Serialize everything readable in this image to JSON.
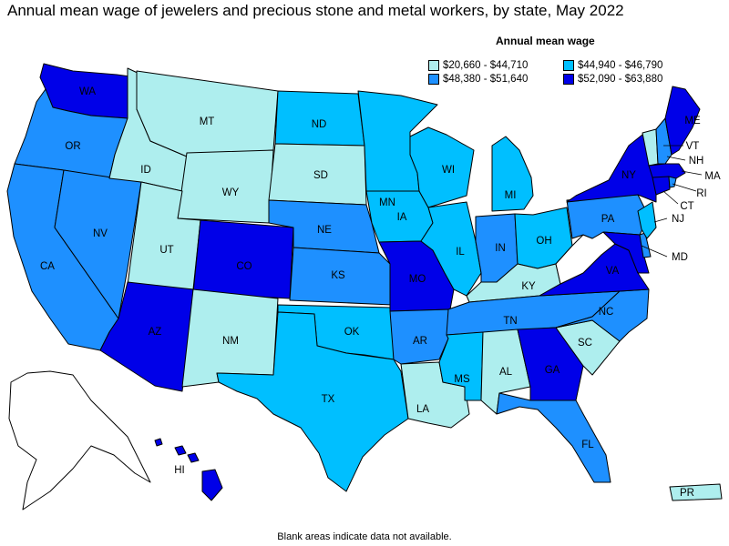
{
  "title": "Annual mean wage of jewelers and precious stone and metal workers, by state, May 2022",
  "legend": {
    "heading": "Annual mean wage",
    "items": [
      {
        "id": "c1",
        "label": "$20,660 - $44,710",
        "color": "#aeeeee"
      },
      {
        "id": "c2",
        "label": "$44,940 - $46,790",
        "color": "#00bfff"
      },
      {
        "id": "c3",
        "label": "$48,380 - $51,640",
        "color": "#1e90ff"
      },
      {
        "id": "c4",
        "label": "$52,090 - $63,880",
        "color": "#0000e8"
      }
    ]
  },
  "states": {
    "WA": "c4",
    "OR": "c3",
    "CA": "c3",
    "NV": "c3",
    "ID": "c1",
    "MT": "c1",
    "WY": "c1",
    "UT": "c1",
    "CO": "c4",
    "AZ": "c4",
    "NM": "c1",
    "ND": "c2",
    "SD": "c1",
    "NE": "c3",
    "KS": "c3",
    "OK": "c2",
    "TX": "c2",
    "MN": "c2",
    "IA": "c2",
    "MO": "c4",
    "AR": "c3",
    "LA": "c1",
    "WI": "c2",
    "IL": "c2",
    "MI": "c2",
    "IN": "c3",
    "OH": "c2",
    "KY": "c1",
    "TN": "c3",
    "MS": "c2",
    "AL": "c1",
    "GA": "c4",
    "FL": "c3",
    "SC": "c1",
    "NC": "c3",
    "VA": "c4",
    "WV": "none",
    "MD": "c4",
    "DE": "c3",
    "PA": "c3",
    "NJ": "c2",
    "NY": "c4",
    "CT": "c4",
    "RI": "c3",
    "MA": "c4",
    "VT": "c1",
    "NH": "c3",
    "ME": "c4",
    "AK": "none",
    "HI": "c4",
    "PR": "c1"
  },
  "footnote": "Blank areas indicate data not available."
}
